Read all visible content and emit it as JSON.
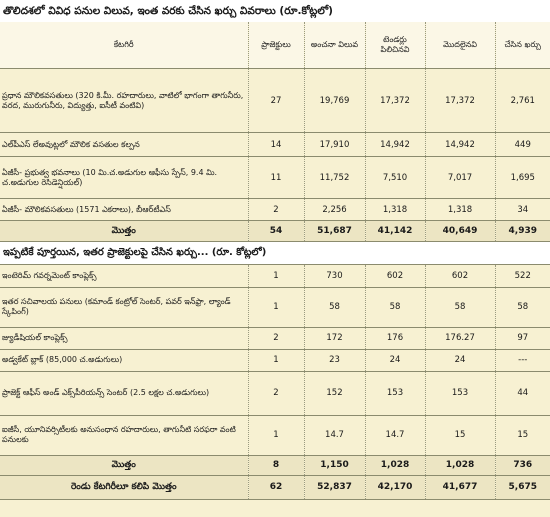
{
  "title": "తొలిదశలో వివిధ పనుల విలువ, ఇంత వరకు చేసిన ఖర్చు వివరాలు (రూ.కోట్లలో)",
  "headers": {
    "category": "కేటగిరీ",
    "projects": "ప్రాజెక్టులు",
    "estimated": "అంచనా విలువ",
    "tendered": "టెండర్లు పిలిచినవి",
    "started": "మొదలైనవి",
    "spent": "చేసిన ఖర్చు"
  },
  "section1": {
    "rows": [
      {
        "category": "ప్రధాన మౌలికవసతులు (320 కి.మీ. రహదారులు, వాటిలో భాగంగా తాగునీరు, వరద, మురుగునీరు, విద్యుత్తు, ఐసీటీ వంటివి)",
        "projects": "27",
        "estimated": "19,769",
        "tendered": "17,372",
        "started": "17,372",
        "spent": "2,761"
      },
      {
        "category": "ఎల్‌పీఎస్‌ లేఅవుట్లలో మౌలిక వసతుల కల్పన",
        "projects": "14",
        "estimated": "17,910",
        "tendered": "14,942",
        "started": "14,942",
        "spent": "449"
      },
      {
        "category": "ఏజీసీ- ప్రభుత్వ భవనాలు (10 మి.చ.అడుగుల ఆఫీసు స్పేస్‌, 9.4 మి. చ.అడుగుల రెసిడెన్షియల్‌)",
        "projects": "11",
        "estimated": "11,752",
        "tendered": "7,510",
        "started": "7,017",
        "spent": "1,695"
      },
      {
        "category": "ఏజీసీ- మౌలికవసతులు (1571 ఎకరాలు), బీఆర్‌టీఎస్‌",
        "projects": "2",
        "estimated": "2,256",
        "tendered": "1,318",
        "started": "1,318",
        "spent": "34"
      }
    ],
    "total": {
      "label": "మొత్తం",
      "projects": "54",
      "estimated": "51,687",
      "tendered": "41,142",
      "started": "40,649",
      "spent": "4,939"
    }
  },
  "section2": {
    "title": "ఇప్పటికే పూర్తయిన, ఇతర ప్రాజెక్టులపై చేసిన ఖర్చు... (రూ. కోట్లలో)",
    "rows": [
      {
        "category": "ఇంటెరిమ్‌ గవర్నమెంట్‌ కాంప్లెక్స్‌",
        "projects": "1",
        "estimated": "730",
        "tendered": "602",
        "started": "602",
        "spent": "522"
      },
      {
        "category": "ఇతర సచివాలయ పనులు (కమాండ్‌ కంట్రోల్‌ సెంటర్‌, పవర్‌ ఇన్‌ఫ్రా, ల్యాండ్‌ స్కేపింగ్‌)",
        "projects": "1",
        "estimated": "58",
        "tendered": "58",
        "started": "58",
        "spent": "58"
      },
      {
        "category": "జ్యుడీషియల్‌ కాంప్లెక్స్‌",
        "projects": "2",
        "estimated": "172",
        "tendered": "176",
        "started": "176.27",
        "spent": "97"
      },
      {
        "category": "అడ్వకేట్‌ బ్లాక్‌ (85,000 చ.అడుగులు)",
        "projects": "1",
        "estimated": "23",
        "tendered": "24",
        "started": "24",
        "spent": "---"
      },
      {
        "category": "ప్రాజెక్ట్‌ ఆఫీస్‌ అండ్‌ ఎక్స్‌పీరియన్స్‌ సెంటర్‌ (2.5 లక్షల చ.అడుగులు)",
        "projects": "2",
        "estimated": "152",
        "tendered": "153",
        "started": "153",
        "spent": "44"
      },
      {
        "category": "ఐజీసీ, యూనివర్సిటీలకు అనుసంధాన రహదారులు, తాగునీటి సరఫరా వంటి పనులకు",
        "projects": "1",
        "estimated": "14.7",
        "tendered": "14.7",
        "started": "15",
        "spent": "15"
      }
    ],
    "total": {
      "label": "మొత్తం",
      "projects": "8",
      "estimated": "1,150",
      "tendered": "1,028",
      "started": "1,028",
      "spent": "736"
    }
  },
  "grand_total": {
    "label": "రెండు కేటగిరీలూ కలిపి మొత్తం",
    "projects": "62",
    "estimated": "52,837",
    "tendered": "42,170",
    "started": "41,677",
    "spent": "5,675"
  }
}
